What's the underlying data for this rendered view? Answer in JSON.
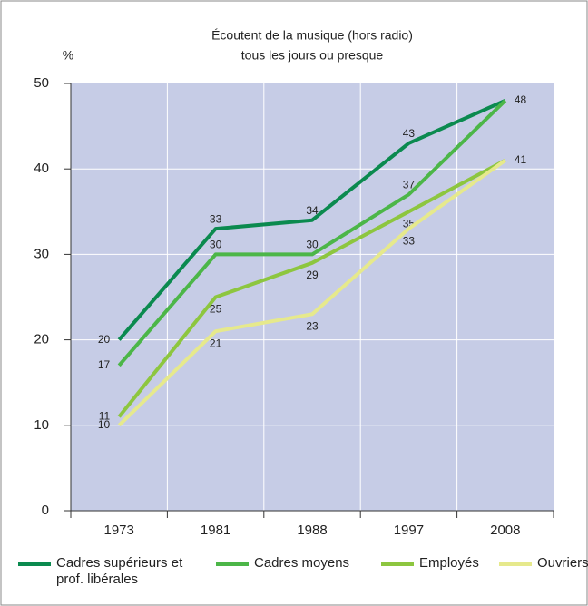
{
  "chart_data": {
    "type": "line",
    "title": "Écoutent de la musique (hors radio)",
    "subtitle": "tous les jours ou presque",
    "y_label": "%",
    "categories": [
      "1973",
      "1981",
      "1988",
      "1997",
      "2008"
    ],
    "ylim": [
      0,
      50
    ],
    "yticks": [
      0,
      10,
      20,
      30,
      40,
      50
    ],
    "grid": true,
    "series": [
      {
        "name": "Cadres supérieurs et prof. libérales",
        "color": "#0b8a4f",
        "values": [
          20,
          33,
          34,
          43,
          48
        ]
      },
      {
        "name": "Cadres moyens",
        "color": "#4cb648",
        "values": [
          17,
          30,
          30,
          37,
          48
        ]
      },
      {
        "name": "Employés",
        "color": "#8dc63f",
        "values": [
          11,
          25,
          29,
          35,
          41
        ]
      },
      {
        "name": "Ouvriers",
        "color": "#e6e98c",
        "values": [
          10,
          21,
          23,
          33,
          41
        ]
      }
    ]
  }
}
